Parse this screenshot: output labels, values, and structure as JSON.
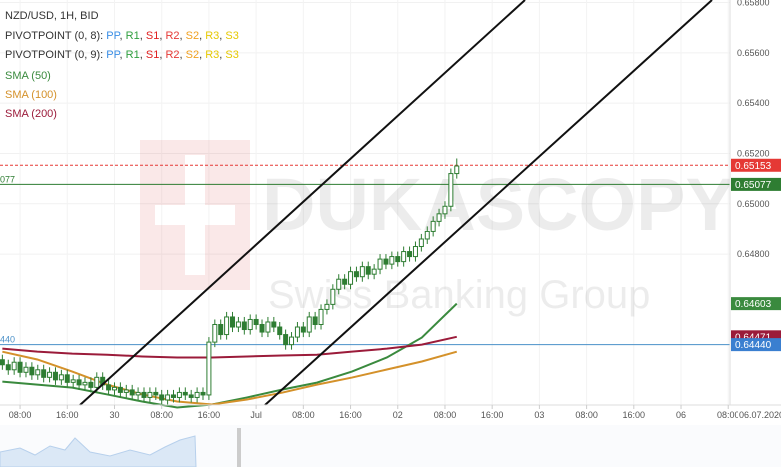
{
  "chart_data": {
    "type": "candlestick",
    "title": "NZD/USD, 1H, BID",
    "pivot_legends": [
      {
        "label": "PIVOTPOINT (0, 8):",
        "items": [
          {
            "name": "PP",
            "color": "#3a8ee6"
          },
          {
            "name": "R1",
            "color": "#2e9e3e"
          },
          {
            "name": "S1",
            "color": "#e02020"
          },
          {
            "name": "R2",
            "color": "#e53935"
          },
          {
            "name": "S2",
            "color": "#f0a020"
          },
          {
            "name": "R3",
            "color": "#e6c800"
          },
          {
            "name": "S3",
            "color": "#e6c800"
          }
        ]
      },
      {
        "label": "PIVOTPOINT (0, 9):",
        "items": [
          {
            "name": "PP",
            "color": "#3a8ee6"
          },
          {
            "name": "R1",
            "color": "#2e9e3e"
          },
          {
            "name": "S1",
            "color": "#e02020"
          },
          {
            "name": "R2",
            "color": "#e53935"
          },
          {
            "name": "S2",
            "color": "#f0a020"
          },
          {
            "name": "R3",
            "color": "#e6c800"
          },
          {
            "name": "S3",
            "color": "#e6c800"
          }
        ]
      }
    ],
    "watermark": [
      "DUKASCOPY",
      "Swiss Banking Group"
    ],
    "up_color": "#2e7d32",
    "down_color": "#2e7d32",
    "ylim": [
      0.642,
      0.6581
    ],
    "yticks": [
      {
        "value": 0.658,
        "label": "0.65800"
      },
      {
        "value": 0.656,
        "label": "0.65600"
      },
      {
        "value": 0.654,
        "label": "0.65400"
      },
      {
        "value": 0.652,
        "label": "0.65200"
      },
      {
        "value": 0.65,
        "label": "0.65000"
      },
      {
        "value": 0.648,
        "label": "0.64800"
      }
    ],
    "xlim": [
      -0.4,
      123.3
    ],
    "xticks": [
      {
        "value": 3,
        "label": "08:00"
      },
      {
        "value": 11,
        "label": "16:00"
      },
      {
        "value": 19,
        "label": "30"
      },
      {
        "value": 27,
        "label": "08:00"
      },
      {
        "value": 35,
        "label": "16:00"
      },
      {
        "value": 43,
        "label": "Jul"
      },
      {
        "value": 51,
        "label": "08:00"
      },
      {
        "value": 59,
        "label": "16:00"
      },
      {
        "value": 67,
        "label": "02"
      },
      {
        "value": 75,
        "label": "08:00"
      },
      {
        "value": 83,
        "label": "16:00"
      },
      {
        "value": 91,
        "label": "03"
      },
      {
        "value": 99,
        "label": "08:00"
      },
      {
        "value": 107,
        "label": "16:00"
      },
      {
        "value": 115,
        "label": "06"
      },
      {
        "value": 123,
        "label": "08:00"
      }
    ],
    "date_label": "06.07.2020",
    "candles": [
      [
        0.6438,
        0.644,
        0.6434,
        0.6436
      ],
      [
        0.6436,
        0.6438,
        0.6432,
        0.6434
      ],
      [
        0.6434,
        0.6439,
        0.6432,
        0.6437
      ],
      [
        0.6437,
        0.6439,
        0.6431,
        0.6433
      ],
      [
        0.6433,
        0.6437,
        0.6431,
        0.6435
      ],
      [
        0.6435,
        0.6437,
        0.643,
        0.6432
      ],
      [
        0.6432,
        0.6436,
        0.643,
        0.6434
      ],
      [
        0.6434,
        0.6436,
        0.6429,
        0.6431
      ],
      [
        0.6431,
        0.6435,
        0.6429,
        0.6433
      ],
      [
        0.6433,
        0.6435,
        0.6428,
        0.643
      ],
      [
        0.643,
        0.6434,
        0.6428,
        0.6432
      ],
      [
        0.6432,
        0.6434,
        0.6427,
        0.6429
      ],
      [
        0.6429,
        0.6432,
        0.6427,
        0.643
      ],
      [
        0.643,
        0.6432,
        0.6426,
        0.6428
      ],
      [
        0.6428,
        0.6431,
        0.6426,
        0.6429
      ],
      [
        0.6429,
        0.6431,
        0.6425,
        0.6427
      ],
      [
        0.6427,
        0.6433,
        0.6425,
        0.6431
      ],
      [
        0.6431,
        0.6433,
        0.6426,
        0.6428
      ],
      [
        0.6428,
        0.643,
        0.6424,
        0.6426
      ],
      [
        0.6426,
        0.6429,
        0.6424,
        0.6427
      ],
      [
        0.6427,
        0.6429,
        0.6423,
        0.6425
      ],
      [
        0.6425,
        0.6428,
        0.6423,
        0.6426
      ],
      [
        0.6426,
        0.6428,
        0.6422,
        0.6424
      ],
      [
        0.6424,
        0.6427,
        0.6422,
        0.6425
      ],
      [
        0.6425,
        0.6427,
        0.6421,
        0.6423
      ],
      [
        0.6423,
        0.6427,
        0.6421,
        0.6425
      ],
      [
        0.6425,
        0.6427,
        0.6422,
        0.6424
      ],
      [
        0.6424,
        0.6426,
        0.642,
        0.6422
      ],
      [
        0.6422,
        0.6426,
        0.642,
        0.6424
      ],
      [
        0.6424,
        0.6426,
        0.6421,
        0.6423
      ],
      [
        0.6423,
        0.6427,
        0.6421,
        0.6425
      ],
      [
        0.6425,
        0.6427,
        0.6422,
        0.6424
      ],
      [
        0.6424,
        0.6426,
        0.6421,
        0.6423
      ],
      [
        0.6423,
        0.6427,
        0.6421,
        0.6425
      ],
      [
        0.6425,
        0.6427,
        0.6422,
        0.6424
      ],
      [
        0.6424,
        0.6447,
        0.6422,
        0.6445
      ],
      [
        0.6445,
        0.6454,
        0.6443,
        0.6452
      ],
      [
        0.6452,
        0.6454,
        0.6446,
        0.6448
      ],
      [
        0.6448,
        0.6457,
        0.6446,
        0.6455
      ],
      [
        0.6455,
        0.6457,
        0.6449,
        0.6451
      ],
      [
        0.6451,
        0.6455,
        0.6449,
        0.6453
      ],
      [
        0.6453,
        0.6455,
        0.6448,
        0.645
      ],
      [
        0.645,
        0.6456,
        0.6448,
        0.6454
      ],
      [
        0.6454,
        0.6456,
        0.645,
        0.6452
      ],
      [
        0.6452,
        0.6454,
        0.6447,
        0.6449
      ],
      [
        0.6449,
        0.6455,
        0.6447,
        0.6453
      ],
      [
        0.6453,
        0.6455,
        0.6449,
        0.6451
      ],
      [
        0.6451,
        0.6453,
        0.6446,
        0.6448
      ],
      [
        0.6448,
        0.645,
        0.6442,
        0.6444
      ],
      [
        0.6444,
        0.6449,
        0.6442,
        0.6447
      ],
      [
        0.6447,
        0.6453,
        0.6445,
        0.6451
      ],
      [
        0.6451,
        0.6453,
        0.6447,
        0.6449
      ],
      [
        0.6449,
        0.6457,
        0.6447,
        0.6455
      ],
      [
        0.6455,
        0.6457,
        0.645,
        0.6452
      ],
      [
        0.6452,
        0.646,
        0.645,
        0.6458
      ],
      [
        0.6458,
        0.6462,
        0.6456,
        0.646
      ],
      [
        0.646,
        0.6468,
        0.6458,
        0.6466
      ],
      [
        0.6466,
        0.6472,
        0.6464,
        0.647
      ],
      [
        0.647,
        0.6472,
        0.6466,
        0.6468
      ],
      [
        0.6468,
        0.6475,
        0.6466,
        0.6473
      ],
      [
        0.6473,
        0.6475,
        0.6469,
        0.6471
      ],
      [
        0.6471,
        0.6477,
        0.6469,
        0.6475
      ],
      [
        0.6475,
        0.6477,
        0.647,
        0.6472
      ],
      [
        0.6472,
        0.6476,
        0.647,
        0.6474
      ],
      [
        0.6474,
        0.648,
        0.6472,
        0.6478
      ],
      [
        0.6478,
        0.648,
        0.6474,
        0.6476
      ],
      [
        0.6476,
        0.6481,
        0.6474,
        0.6479
      ],
      [
        0.6479,
        0.6481,
        0.6475,
        0.6477
      ],
      [
        0.6477,
        0.6483,
        0.6475,
        0.6481
      ],
      [
        0.6481,
        0.6483,
        0.6477,
        0.6479
      ],
      [
        0.6479,
        0.6485,
        0.6477,
        0.6483
      ],
      [
        0.6483,
        0.6488,
        0.6481,
        0.6486
      ],
      [
        0.6486,
        0.6491,
        0.6484,
        0.6489
      ],
      [
        0.6489,
        0.6495,
        0.6487,
        0.6493
      ],
      [
        0.6493,
        0.6498,
        0.6491,
        0.6496
      ],
      [
        0.6496,
        0.6501,
        0.6494,
        0.6499
      ],
      [
        0.6499,
        0.6514,
        0.6497,
        0.6512
      ],
      [
        0.6512,
        0.6518,
        0.651,
        0.6515
      ]
    ],
    "series": [
      {
        "name": "SMA (50)",
        "color": "#3a8a3e",
        "values": [
          0.64293,
          0.64281,
          0.64269,
          0.64242,
          0.64214,
          0.6419,
          0.64202,
          0.6423,
          0.64261,
          0.64289,
          0.64333,
          0.64389,
          0.64468,
          0.64603
        ]
      },
      {
        "name": "SMA (100)",
        "color": "#d4912a",
        "values": [
          0.64412,
          0.64381,
          0.64333,
          0.64281,
          0.64242,
          0.64214,
          0.64202,
          0.64222,
          0.64249,
          0.64281,
          0.64309,
          0.64341,
          0.64373,
          0.64412
        ]
      },
      {
        "name": "SMA (200)",
        "color": "#9b1b3a",
        "values": [
          0.64424,
          0.64412,
          0.64404,
          0.644,
          0.64393,
          0.64389,
          0.64389,
          0.64393,
          0.64397,
          0.644,
          0.64412,
          0.64424,
          0.6444,
          0.64471
        ]
      }
    ],
    "levels": [
      {
        "value": 0.65153,
        "color": "#e53935",
        "dash": true
      },
      {
        "value": 0.65077,
        "color": "#2e7d32",
        "left_label": "077"
      },
      {
        "value": 0.6444,
        "color": "#4a90c8",
        "left_label": "440"
      }
    ],
    "price_tags": [
      {
        "value": 0.65153,
        "label": "0.65153",
        "color": "#e53935"
      },
      {
        "value": 0.65077,
        "label": "0.65077",
        "color": "#2e7d32"
      },
      {
        "value": 0.64603,
        "label": "0.64603",
        "color": "#3a8a3e"
      },
      {
        "value": 0.64471,
        "label": "0.64471",
        "color": "#9b1b3a"
      },
      {
        "value": 0.6444,
        "label": "0.64440",
        "color": "#3a7fd0"
      }
    ]
  }
}
